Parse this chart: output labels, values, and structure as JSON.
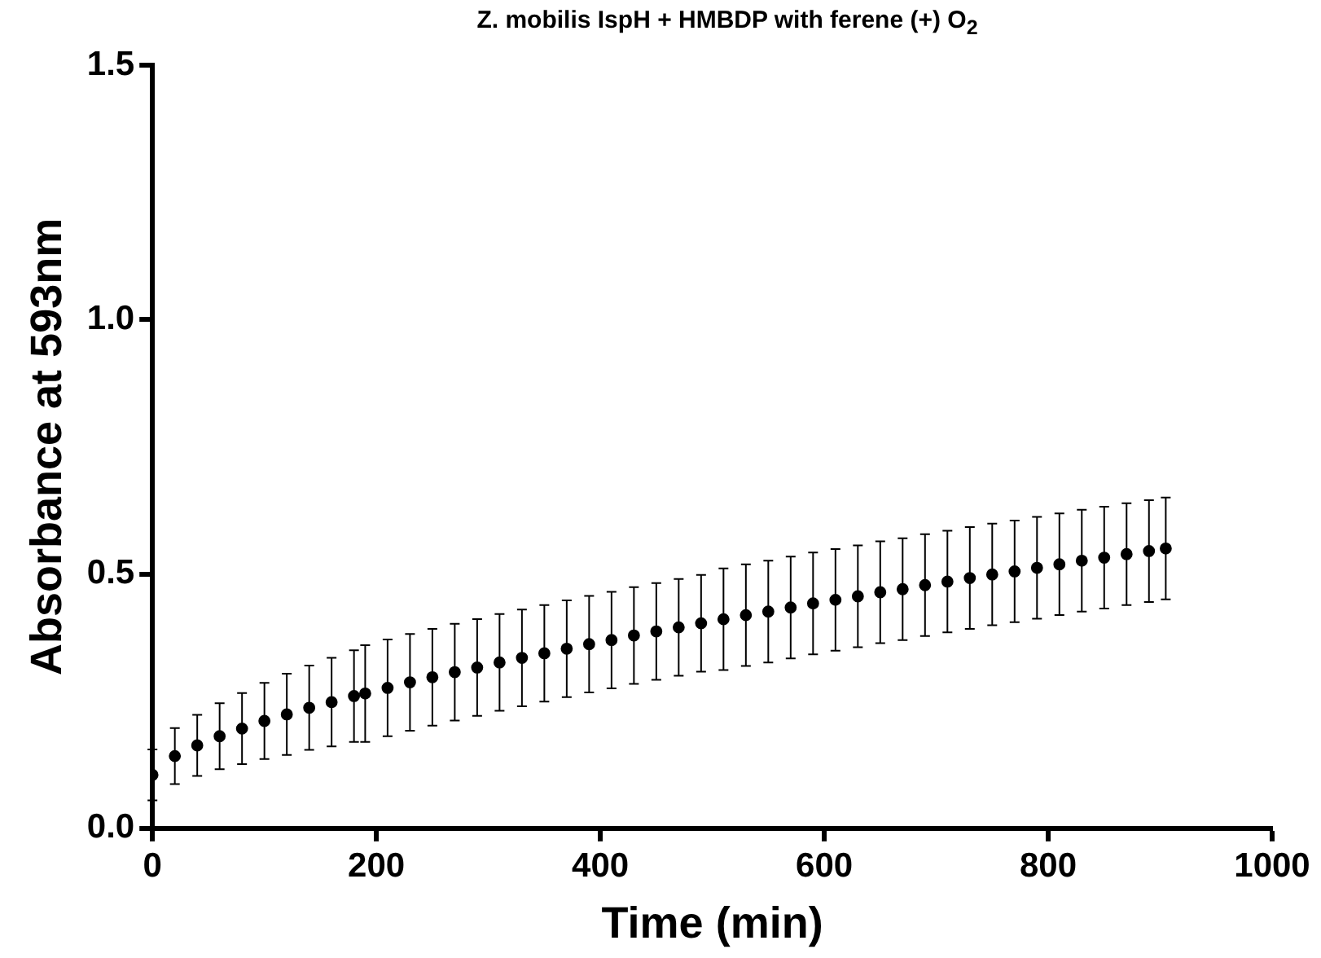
{
  "chart_data": {
    "type": "scatter",
    "title": "Z. mobilis IspH + HMBDP with ferene (+) O$_{2}$",
    "xlabel": "Time (min)",
    "ylabel": "Absorbance at 593nm",
    "xlim": [
      0,
      1000
    ],
    "xticks": [
      0,
      200,
      400,
      600,
      800,
      1000
    ],
    "ylim": [
      0,
      1.5
    ],
    "yticks": [
      {
        "value": 0,
        "label": "0.0"
      },
      {
        "value": 0.5,
        "label": "0.5"
      },
      {
        "value": 1,
        "label": "1.0"
      },
      {
        "value": 1.5,
        "label": "1.5"
      }
    ],
    "grid": false,
    "legend": false,
    "marker": "circle",
    "series": [
      {
        "color": "#000000",
        "x": [
          0,
          20,
          40,
          60,
          80,
          100,
          120,
          140,
          160,
          180,
          190,
          210,
          230,
          250,
          270,
          290,
          310,
          330,
          350,
          370,
          390,
          410,
          430,
          450,
          470,
          490,
          510,
          530,
          550,
          570,
          590,
          610,
          630,
          650,
          670,
          690,
          710,
          730,
          750,
          770,
          790,
          810,
          830,
          850,
          870,
          890,
          905
        ],
        "values": [
          0.105,
          0.142,
          0.163,
          0.181,
          0.196,
          0.211,
          0.224,
          0.237,
          0.248,
          0.26,
          0.265,
          0.276,
          0.287,
          0.297,
          0.307,
          0.316,
          0.326,
          0.335,
          0.344,
          0.353,
          0.362,
          0.37,
          0.379,
          0.387,
          0.395,
          0.403,
          0.411,
          0.419,
          0.426,
          0.434,
          0.442,
          0.449,
          0.456,
          0.464,
          0.47,
          0.478,
          0.485,
          0.492,
          0.499,
          0.505,
          0.512,
          0.519,
          0.526,
          0.532,
          0.539,
          0.545,
          0.55
        ],
        "errors": [
          0.05,
          0.055,
          0.06,
          0.065,
          0.07,
          0.075,
          0.08,
          0.083,
          0.087,
          0.09,
          0.095,
          0.095,
          0.095,
          0.095,
          0.095,
          0.095,
          0.095,
          0.095,
          0.095,
          0.095,
          0.095,
          0.095,
          0.095,
          0.095,
          0.095,
          0.095,
          0.1,
          0.1,
          0.1,
          0.1,
          0.1,
          0.1,
          0.1,
          0.1,
          0.1,
          0.1,
          0.1,
          0.1,
          0.1,
          0.1,
          0.1,
          0.1,
          0.1,
          0.1,
          0.1,
          0.1,
          0.1
        ]
      }
    ]
  }
}
